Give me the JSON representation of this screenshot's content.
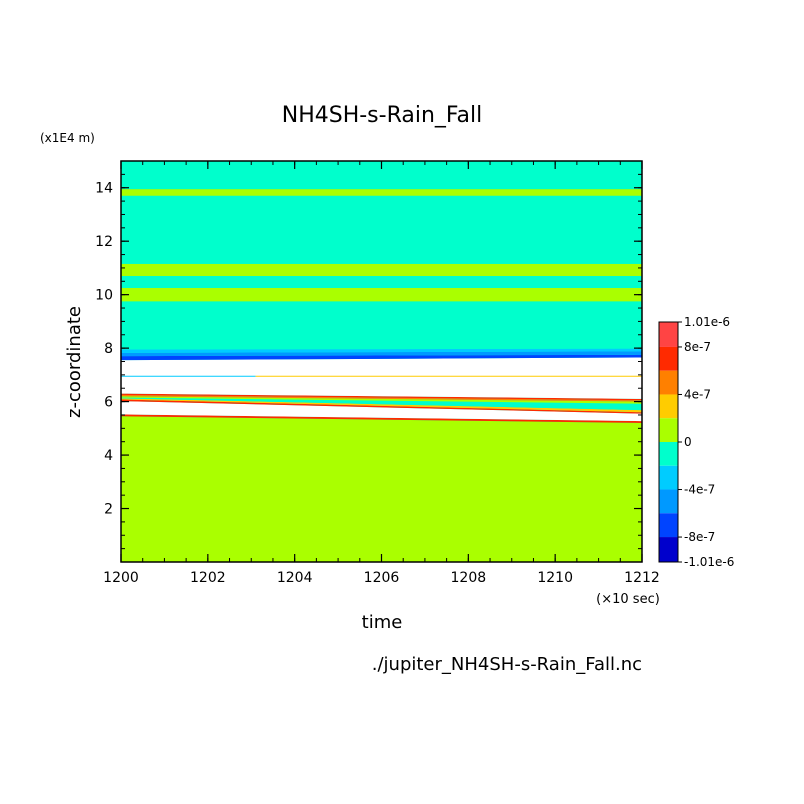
{
  "chart_data": {
    "type": "heatmap",
    "title": "NH4SH-s-Rain_Fall",
    "xlabel": "time",
    "xunit": "(×10 sec)",
    "ylabel": "z-coordinate",
    "yunit": "(x1E4 m)",
    "source_file": "./jupiter_NH4SH-s-Rain_Fall.nc",
    "xlim": [
      1200,
      1212
    ],
    "ylim": [
      0,
      15
    ],
    "x_ticks": [
      1200,
      1202,
      1204,
      1206,
      1208,
      1210,
      1212
    ],
    "y_ticks": [
      2,
      4,
      6,
      8,
      10,
      12,
      14
    ],
    "background_value": "0 to -2e-7",
    "colorbar": {
      "min_label": "-1.01e-6",
      "max_label": "1.01e-6",
      "tick_labels": [
        {
          "value": 1.01e-06,
          "label": "1.01e-6"
        },
        {
          "value": 8e-07,
          "label": "8e-7"
        },
        {
          "value": 4e-07,
          "label": "4e-7"
        },
        {
          "value": 0,
          "label": "0"
        },
        {
          "value": -4e-07,
          "label": "-4e-7"
        },
        {
          "value": -8e-07,
          "label": "-8e-7"
        },
        {
          "value": -1.01e-06,
          "label": "-1.01e-6"
        }
      ],
      "levels": [
        {
          "from": 8e-07,
          "to": 1.01e-06,
          "color": "#ff4444"
        },
        {
          "from": 6e-07,
          "to": 8e-07,
          "color": "#ff2a00"
        },
        {
          "from": 4e-07,
          "to": 6e-07,
          "color": "#ff8000"
        },
        {
          "from": 2e-07,
          "to": 4e-07,
          "color": "#ffcc00"
        },
        {
          "from": 0,
          "to": 2e-07,
          "color": "#aaff00"
        },
        {
          "from": -2e-07,
          "to": 0,
          "color": "#00ffcc"
        },
        {
          "from": -4e-07,
          "to": -2e-07,
          "color": "#00ccff"
        },
        {
          "from": -6e-07,
          "to": -4e-07,
          "color": "#0099ff"
        },
        {
          "from": -8e-07,
          "to": -6e-07,
          "color": "#0044ff"
        },
        {
          "from": -1.01e-06,
          "to": -8e-07,
          "color": "#0000cc"
        }
      ]
    },
    "regions": [
      {
        "color": "#aaff00",
        "y0_start": 0,
        "y1_start": 5.45,
        "y0_end": 0,
        "y1_end": 5.2
      },
      {
        "color": "#ff2a00",
        "y0_start": 5.45,
        "y1_start": 5.52,
        "y0_end": 5.2,
        "y1_end": 5.27
      },
      {
        "color": "#ffffff",
        "y0_start": 5.52,
        "y1_start": 6.02,
        "y0_end": 5.27,
        "y1_end": 5.55
      },
      {
        "color": "#ff2a00",
        "y0_start": 6.02,
        "y1_start": 6.08,
        "y0_end": 5.55,
        "y1_end": 5.6
      },
      {
        "color": "#ffcc00",
        "y0_start": 6.08,
        "y1_start": 6.12,
        "y0_end": 5.6,
        "y1_end": 5.68
      },
      {
        "color": "#00ffcc",
        "y0_start": 6.12,
        "y1_start": 6.15,
        "y0_end": 5.68,
        "y1_end": 5.92
      },
      {
        "color": "#aaff00",
        "y0_start": 6.15,
        "y1_start": 6.2,
        "y0_end": 5.92,
        "y1_end": 6.0
      },
      {
        "color": "#ff8000",
        "y0_start": 6.2,
        "y1_start": 6.25,
        "y0_end": 6.0,
        "y1_end": 6.05
      },
      {
        "color": "#ff2a00",
        "y0_start": 6.25,
        "y1_start": 6.3,
        "y0_end": 6.05,
        "y1_end": 6.1
      },
      {
        "color": "#ffffff",
        "y0_start": 6.3,
        "y1_start": 7.55,
        "y0_end": 6.1,
        "y1_end": 7.65
      },
      {
        "color": "#0044ff",
        "y0_start": 7.55,
        "y1_start": 7.7,
        "y0_end": 7.65,
        "y1_end": 7.75
      },
      {
        "color": "#0099ff",
        "y0_start": 7.7,
        "y1_start": 7.82,
        "y0_end": 7.75,
        "y1_end": 7.88
      },
      {
        "color": "#00ccff",
        "y0_start": 7.82,
        "y1_start": 7.95,
        "y0_end": 7.88,
        "y1_end": 7.98
      },
      {
        "color": "#00ffcc",
        "y0_start": 7.95,
        "y1_start": 9.75,
        "y0_end": 7.98,
        "y1_end": 9.75
      },
      {
        "color": "#aaff00",
        "y0_start": 9.75,
        "y1_start": 10.25,
        "y0_end": 9.75,
        "y1_end": 10.25
      },
      {
        "color": "#00ffcc",
        "y0_start": 10.25,
        "y1_start": 10.7,
        "y0_end": 10.25,
        "y1_end": 10.7
      },
      {
        "color": "#aaff00",
        "y0_start": 10.7,
        "y1_start": 11.15,
        "y0_end": 10.7,
        "y1_end": 11.15
      },
      {
        "color": "#00ffcc",
        "y0_start": 11.15,
        "y1_start": 13.7,
        "y0_end": 11.15,
        "y1_end": 13.7
      },
      {
        "color": "#aaff00",
        "y0_start": 13.7,
        "y1_start": 13.95,
        "y0_end": 13.7,
        "y1_end": 13.95
      },
      {
        "color": "#00ffcc",
        "y0_start": 13.95,
        "y1_start": 15,
        "y0_end": 13.95,
        "y1_end": 15
      }
    ],
    "lines": [
      {
        "color": "#00ccff",
        "y": 6.95,
        "x0": 1200,
        "x1": 1203.1
      },
      {
        "color": "#ffcc00",
        "y": 6.95,
        "x0": 1203.1,
        "x1": 1212
      }
    ]
  }
}
